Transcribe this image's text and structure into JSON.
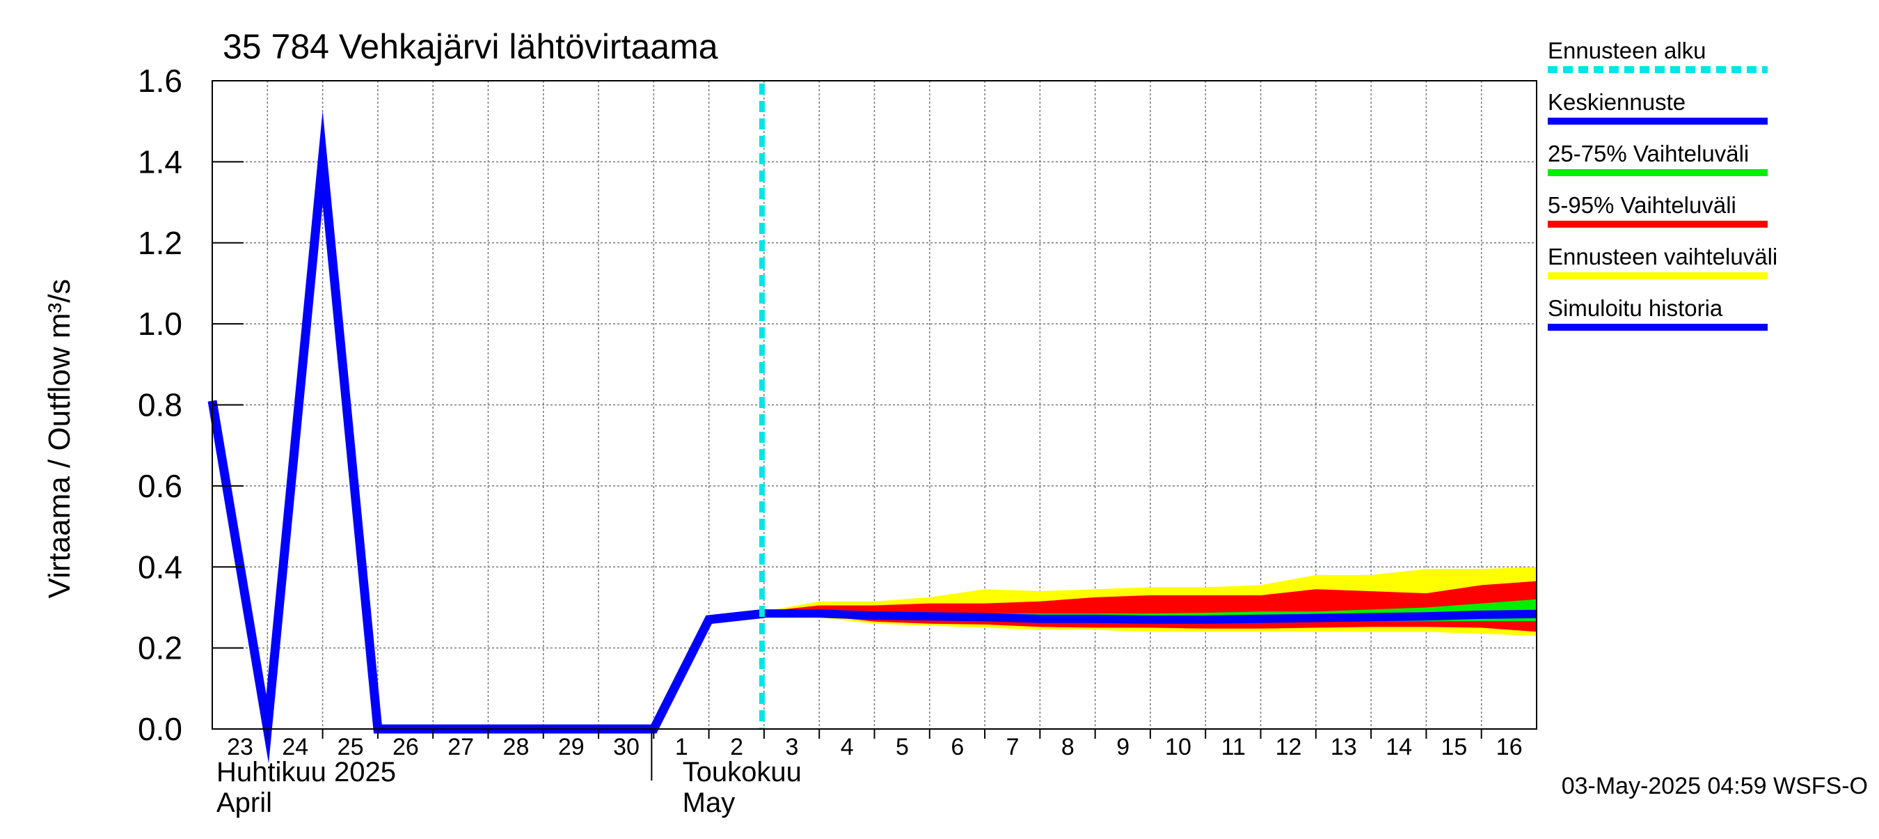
{
  "chart_data": {
    "type": "line",
    "title": "35 784 Vehkajärvi lähtövirtaama",
    "ylabel": "Virtaama / Outflow    m³/s",
    "ylim": [
      0,
      1.6
    ],
    "yticks": [
      "0.0",
      "0.2",
      "0.4",
      "0.6",
      "0.8",
      "1.0",
      "1.2",
      "1.4",
      "1.6"
    ],
    "xlim": [
      "2025-04-23",
      "2025-05-17"
    ],
    "x_day_labels": [
      "23",
      "24",
      "25",
      "26",
      "27",
      "28",
      "29",
      "30",
      "1",
      "2",
      "3",
      "4",
      "5",
      "6",
      "7",
      "8",
      "9",
      "10",
      "11",
      "12",
      "13",
      "14",
      "15",
      "16"
    ],
    "month_labels": [
      {
        "fi": "Huhtikuu  2025",
        "en": "April"
      },
      {
        "fi": "Toukokuu",
        "en": "May"
      }
    ],
    "forecast_start": "2025-05-03",
    "grid": true,
    "legend_placement": "right",
    "series": [
      {
        "name": "Simuloitu historia",
        "color": "#0000ff",
        "x": [
          "2025-04-23",
          "2025-04-24",
          "2025-04-25",
          "2025-04-26",
          "2025-04-27",
          "2025-04-28",
          "2025-04-29",
          "2025-04-30",
          "2025-05-01",
          "2025-05-02",
          "2025-05-03"
        ],
        "values": [
          0.81,
          0.0,
          1.41,
          0.0,
          0.0,
          0.0,
          0.0,
          0.0,
          0.0,
          0.27,
          0.285
        ]
      },
      {
        "name": "Keskiennuste",
        "color": "#0000ff",
        "x": [
          "2025-05-03",
          "2025-05-04",
          "2025-05-05",
          "2025-05-06",
          "2025-05-07",
          "2025-05-08",
          "2025-05-09",
          "2025-05-10",
          "2025-05-11",
          "2025-05-12",
          "2025-05-13",
          "2025-05-14",
          "2025-05-15",
          "2025-05-16",
          "2025-05-17"
        ],
        "values": [
          0.285,
          0.285,
          0.28,
          0.278,
          0.276,
          0.272,
          0.272,
          0.27,
          0.27,
          0.272,
          0.274,
          0.276,
          0.278,
          0.282,
          0.284
        ]
      }
    ],
    "bands": {
      "x": [
        "2025-05-03",
        "2025-05-04",
        "2025-05-05",
        "2025-05-06",
        "2025-05-07",
        "2025-05-08",
        "2025-05-09",
        "2025-05-10",
        "2025-05-11",
        "2025-05-12",
        "2025-05-13",
        "2025-05-14",
        "2025-05-15",
        "2025-05-16",
        "2025-05-17"
      ],
      "ensemble": {
        "name": "Ennusteen vaihteluväli",
        "color": "#ffff00",
        "lower": [
          0.285,
          0.275,
          0.26,
          0.255,
          0.25,
          0.245,
          0.245,
          0.24,
          0.24,
          0.24,
          0.24,
          0.24,
          0.24,
          0.235,
          0.23
        ],
        "upper": [
          0.29,
          0.315,
          0.315,
          0.325,
          0.345,
          0.34,
          0.345,
          0.35,
          0.35,
          0.355,
          0.38,
          0.38,
          0.395,
          0.395,
          0.4
        ]
      },
      "p5_95": {
        "name": "5-95% Vaihteluväli",
        "color": "#ff0000",
        "lower": [
          0.285,
          0.28,
          0.265,
          0.26,
          0.258,
          0.252,
          0.25,
          0.25,
          0.248,
          0.248,
          0.25,
          0.252,
          0.252,
          0.25,
          0.24
        ],
        "upper": [
          0.29,
          0.305,
          0.305,
          0.31,
          0.31,
          0.315,
          0.325,
          0.33,
          0.33,
          0.33,
          0.345,
          0.34,
          0.335,
          0.355,
          0.365
        ]
      },
      "p25_75": {
        "name": "25-75% Vaihteluväli",
        "color": "#00ee00",
        "lower": [
          0.285,
          0.282,
          0.275,
          0.272,
          0.27,
          0.266,
          0.265,
          0.264,
          0.263,
          0.265,
          0.266,
          0.266,
          0.266,
          0.266,
          0.266
        ],
        "upper": [
          0.29,
          0.292,
          0.29,
          0.288,
          0.286,
          0.285,
          0.285,
          0.285,
          0.287,
          0.29,
          0.29,
          0.295,
          0.3,
          0.31,
          0.32
        ]
      }
    },
    "legend": [
      {
        "label": "Ennusteen alku",
        "color": "#00e5e5",
        "style": "dashed"
      },
      {
        "label": "Keskiennuste",
        "color": "#0000ff",
        "style": "solid"
      },
      {
        "label": "25-75% Vaihteluväli",
        "color": "#00ee00",
        "style": "solid"
      },
      {
        "label": "5-95% Vaihteluväli",
        "color": "#ff0000",
        "style": "solid"
      },
      {
        "label": "Ennusteen vaihteluväli",
        "color": "#ffff00",
        "style": "solid"
      },
      {
        "label": "Simuloitu historia",
        "color": "#0000ff",
        "style": "solid"
      }
    ],
    "footer": "03-May-2025 04:59 WSFS-O"
  }
}
